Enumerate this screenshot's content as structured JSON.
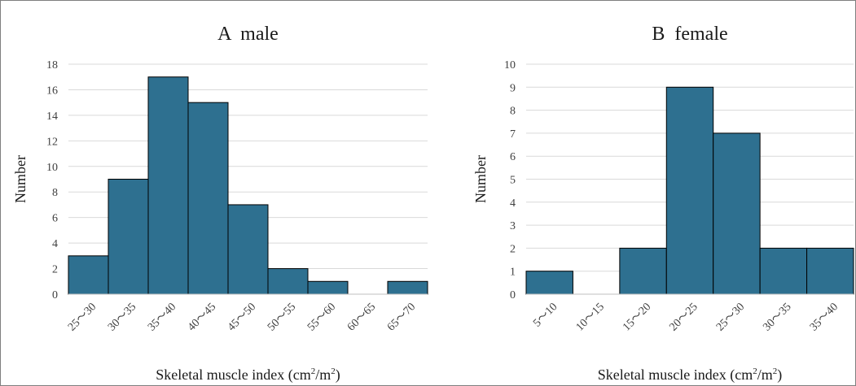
{
  "chart_data": [
    {
      "type": "bar",
      "title": "A  male",
      "xlabel": "Skeletal muscle index (cm²/m²)",
      "ylabel": "Number",
      "categories": [
        "25〜30",
        "30〜35",
        "35〜40",
        "40〜45",
        "45〜50",
        "50〜55",
        "55〜60",
        "60〜65",
        "65〜70"
      ],
      "values": [
        3,
        9,
        17,
        15,
        7,
        2,
        1,
        0,
        1
      ],
      "ylim": [
        0,
        18
      ],
      "yticks": [
        "0",
        "2",
        "4",
        "6",
        "8",
        "10",
        "12",
        "14",
        "16",
        "18"
      ],
      "grid": true,
      "color": "#2e7090"
    },
    {
      "type": "bar",
      "title": "B  female",
      "xlabel": "Skeletal muscle index (cm²/m²)",
      "ylabel": "Number",
      "categories": [
        "5〜10",
        "10〜15",
        "15〜20",
        "20〜25",
        "25〜30",
        "30〜35",
        "35〜40"
      ],
      "values": [
        1,
        0,
        2,
        9,
        7,
        2,
        2
      ],
      "ylim": [
        0,
        10
      ],
      "yticks": [
        "0",
        "1",
        "2",
        "3",
        "4",
        "5",
        "6",
        "7",
        "8",
        "9",
        "10"
      ],
      "grid": true,
      "color": "#2e7090"
    }
  ]
}
